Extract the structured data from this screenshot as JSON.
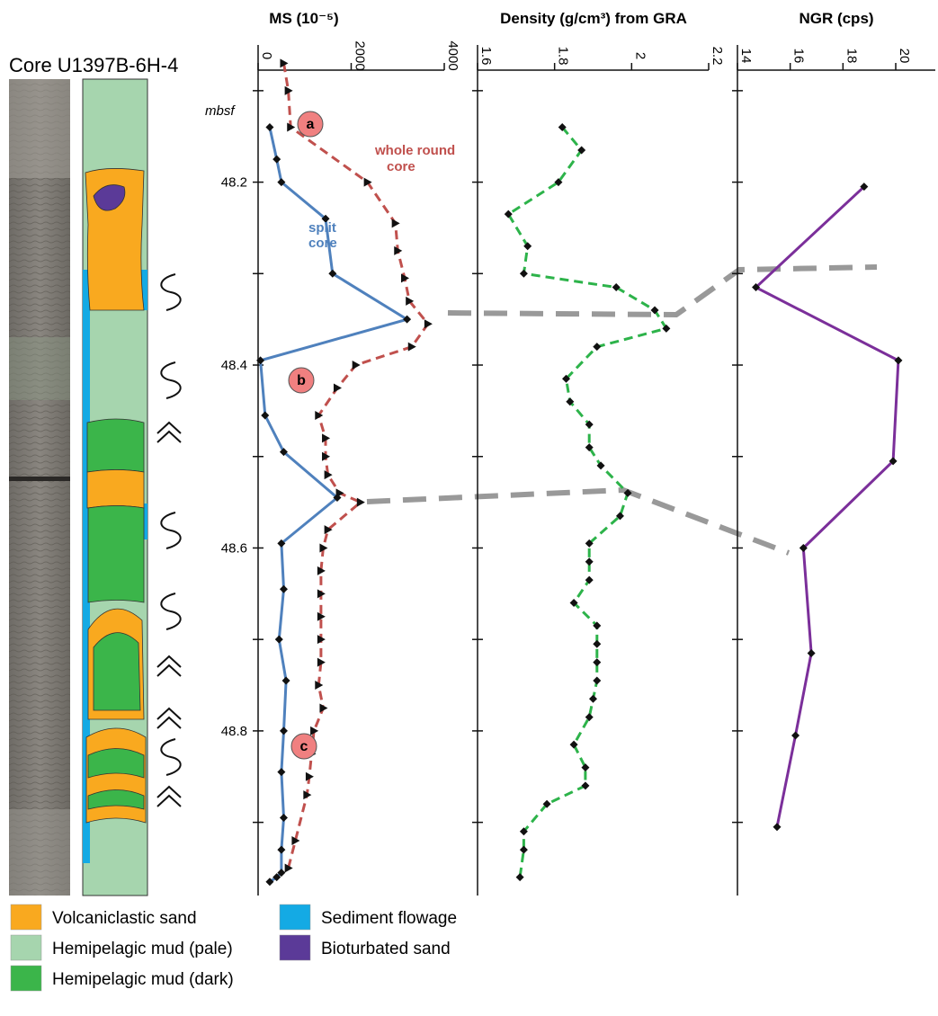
{
  "core_label": "Core U1397B-6H-4",
  "depth_unit": "mbsf",
  "facies_colors": {
    "volcaniclastic_sand": "#f9a91f",
    "hemipelagic_pale": "#a6d5ae",
    "hemipelagic_dark": "#3bb54a",
    "sediment_flowage": "#14aae4",
    "bioturbated_sand": "#5b3a98"
  },
  "legend": [
    {
      "label": "Volcaniclastic sand",
      "color": "#f9a91f"
    },
    {
      "label": "Hemipelagic mud (pale)",
      "color": "#a6d5ae"
    },
    {
      "label": "Hemipelagic mud (dark)",
      "color": "#3bb54a"
    },
    {
      "label": "Sediment flowage",
      "color": "#14aae4"
    },
    {
      "label": "Bioturbated sand",
      "color": "#5b3a98"
    }
  ],
  "annotations": [
    "a",
    "b",
    "c"
  ],
  "chart_data": [
    {
      "type": "line",
      "title": "MS (10⁻⁵)",
      "xlim": [
        0,
        4000
      ],
      "xticks": [
        0,
        2000,
        4000
      ],
      "ylim": [
        48.05,
        48.98
      ],
      "yticks": [
        48.2,
        48.4,
        48.6,
        48.8
      ],
      "series": [
        {
          "name": "whole round core",
          "color": "#c0504d",
          "dash": true,
          "x": [
            550,
            650,
            700,
            2350,
            2950,
            3000,
            3150,
            3250,
            3650,
            3300,
            2100,
            1700,
            1300,
            1450,
            1450,
            1500,
            1750,
            2200,
            1500,
            1400,
            1350,
            1350,
            1350,
            1350,
            1350,
            1300,
            1400,
            1200,
            1150,
            1100,
            1050,
            800,
            650
          ],
          "y": [
            48.07,
            48.1,
            48.14,
            48.2,
            48.245,
            48.275,
            48.305,
            48.33,
            48.355,
            48.38,
            48.4,
            48.425,
            48.455,
            48.48,
            48.5,
            48.52,
            48.54,
            48.55,
            48.58,
            48.6,
            48.625,
            48.65,
            48.675,
            48.7,
            48.725,
            48.75,
            48.775,
            48.8,
            48.825,
            48.85,
            48.87,
            48.92,
            48.95
          ]
        },
        {
          "name": "split core",
          "color": "#4f81bd",
          "dash": false,
          "x": [
            250,
            400,
            500,
            1450,
            1600,
            3200,
            50,
            150,
            550,
            1700,
            500,
            550,
            450,
            600,
            550,
            500,
            550,
            500,
            500,
            400,
            250
          ],
          "y": [
            48.14,
            48.175,
            48.2,
            48.24,
            48.3,
            48.35,
            48.395,
            48.455,
            48.495,
            48.545,
            48.595,
            48.645,
            48.7,
            48.745,
            48.8,
            48.845,
            48.895,
            48.93,
            48.955,
            48.96,
            48.965
          ]
        }
      ],
      "series_labels": [
        "whole round core",
        "split core"
      ]
    },
    {
      "type": "line",
      "title": "Density (g/cm³) from GRA",
      "xlim": [
        1.6,
        2.2
      ],
      "xticks": [
        1.6,
        1.8,
        2.0,
        2.2
      ],
      "ylim": [
        48.05,
        48.98
      ],
      "series": [
        {
          "name": "",
          "color": "#2db34a",
          "dash": true,
          "x": [
            1.82,
            1.87,
            1.81,
            1.68,
            1.73,
            1.72,
            1.96,
            2.06,
            2.09,
            1.91,
            1.83,
            1.84,
            1.89,
            1.89,
            1.92,
            1.99,
            1.97,
            1.89,
            1.89,
            1.89,
            1.85,
            1.91,
            1.91,
            1.91,
            1.91,
            1.9,
            1.89,
            1.85,
            1.88,
            1.88,
            1.78,
            1.72,
            1.72,
            1.71
          ],
          "y": [
            48.14,
            48.165,
            48.2,
            48.235,
            48.27,
            48.3,
            48.315,
            48.34,
            48.36,
            48.38,
            48.415,
            48.44,
            48.465,
            48.49,
            48.51,
            48.54,
            48.565,
            48.595,
            48.615,
            48.635,
            48.66,
            48.685,
            48.705,
            48.725,
            48.745,
            48.765,
            48.785,
            48.815,
            48.84,
            48.86,
            48.88,
            48.91,
            48.93,
            48.96
          ]
        }
      ]
    },
    {
      "type": "line",
      "title": "NGR (cps)",
      "xlim": [
        14,
        21.5
      ],
      "xticks": [
        14,
        16,
        18,
        20
      ],
      "ylim": [
        48.05,
        48.98
      ],
      "series": [
        {
          "name": "",
          "color": "#7b2f9a",
          "dash": false,
          "x": [
            18.8,
            14.7,
            20.1,
            19.9,
            16.5,
            16.8,
            16.2,
            15.5
          ],
          "y": [
            48.205,
            48.315,
            48.395,
            48.505,
            48.6,
            48.715,
            48.805,
            48.905
          ]
        }
      ]
    }
  ]
}
